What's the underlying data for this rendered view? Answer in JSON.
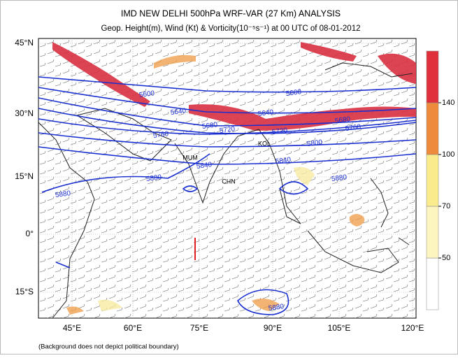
{
  "header": {
    "title": "IMD NEW DELHI 500hPa WRF-VAR (27 Km) ANALYSIS",
    "subtitle": "Geop. Height(m), Wind (Kt) & Vorticity(10⁻⁵s⁻¹) at 00 UTC of 08-01-2012"
  },
  "map": {
    "lon_ticks": [
      "45°E",
      "60°E",
      "75°E",
      "90°E",
      "105°E",
      "120°E"
    ],
    "lat_ticks": [
      "45°N",
      "30°N",
      "15°N",
      "0°",
      "15°S"
    ],
    "stations": [
      "MUM",
      "CHN",
      "KOL"
    ],
    "contour_labels": [
      5600,
      5600,
      5640,
      5640,
      5680,
      5680,
      5720,
      5720,
      5760,
      5760,
      5800,
      5840,
      5840,
      5880,
      5880,
      5880,
      5880
    ]
  },
  "colorbar": {
    "ticks": [
      50,
      70,
      100,
      140
    ],
    "colors": [
      "#ffffff",
      "#fdf5c0",
      "#faeb8c",
      "#ee8a3c",
      "#e0303c"
    ]
  },
  "footnote": "(Background does not depict political boundary)"
}
